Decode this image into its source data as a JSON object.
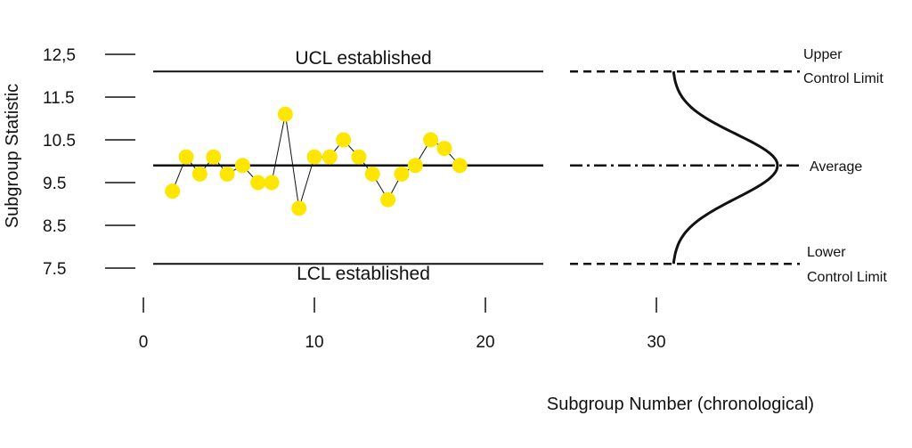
{
  "chart_data": {
    "type": "line",
    "title": "",
    "ylabel": "Subgroup Statistic",
    "xlabel": "Subgroup Number (chronological)",
    "y_tick_labels": [
      "12,5",
      "11.5",
      "10.5",
      "9.5",
      "8.5",
      "7.5"
    ],
    "x_tick_labels": [
      "0",
      "10",
      "20",
      "30"
    ],
    "ylim": [
      7.5,
      12.5
    ],
    "xlim": [
      0,
      30
    ],
    "ucl": 12.1,
    "center": 9.9,
    "lcl": 7.6,
    "ucl_label": "UCL established",
    "lcl_label": "LCL established",
    "distribution_labels": {
      "upper_line1": "Upper",
      "upper_line2": "Control Limit",
      "average": "Average",
      "lower_line1": "Lower",
      "lower_line2": "Control Limit"
    },
    "series": [
      {
        "x": [
          1.7,
          2.5,
          3.3,
          4.1,
          4.9,
          5.8,
          6.7,
          7.5,
          8.3,
          9.1,
          10.0,
          10.9,
          11.7,
          12.6,
          13.4,
          14.3,
          15.1,
          15.9,
          16.8,
          17.6,
          18.5
        ],
        "y": [
          9.3,
          10.1,
          9.7,
          10.1,
          9.7,
          9.9,
          9.5,
          9.5,
          11.1,
          8.9,
          10.1,
          10.1,
          10.5,
          10.1,
          9.7,
          9.1,
          9.7,
          9.9,
          10.5,
          10.3,
          9.9
        ]
      }
    ],
    "colors": {
      "points": "#FFE600",
      "lines": "#111111"
    }
  }
}
